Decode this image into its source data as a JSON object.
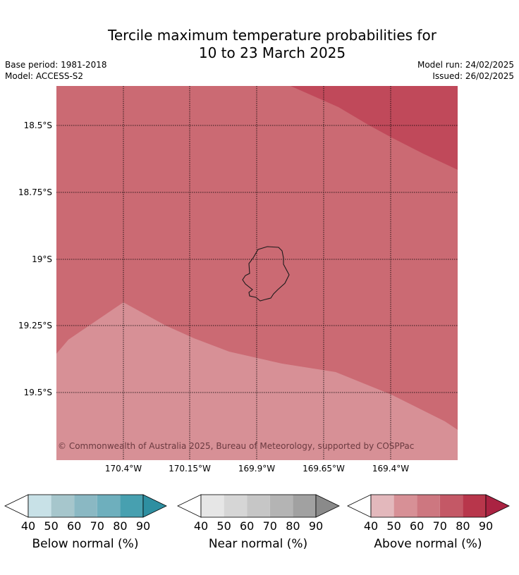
{
  "title": {
    "line1": "Tercile maximum temperature probabilities for",
    "line2": "10 to 23 March 2025"
  },
  "meta": {
    "base_period": "Base period: 1981-2018",
    "model": "Model: ACCESS-S2",
    "model_run": "Model run: 24/02/2025",
    "issued": "Issued: 26/02/2025"
  },
  "map": {
    "latitude_labels": [
      "18.5°S",
      "18.75°S",
      "19°S",
      "19.25°S",
      "19.5°S"
    ],
    "longitude_labels": [
      "170.4°W",
      "170.15°W",
      "169.9°W",
      "169.65°W",
      "169.4°W"
    ],
    "copyright": "© Commonwealth of Australia 2025, Bureau of Meteorology, supported by COSPPac",
    "colors": {
      "above_50_60": "#d79096",
      "above_60_70": "#cb6a73",
      "above_70_80": "#c0495a"
    }
  },
  "colorbars": [
    {
      "title": "Below normal (%)",
      "ticks": [
        "40",
        "50",
        "60",
        "70",
        "80",
        "90"
      ],
      "colors": [
        "#ffffff",
        "#c8e1e7",
        "#a6c6cc",
        "#8ab8c3",
        "#6eafbd",
        "#47a0b0",
        "#2e8fa1"
      ]
    },
    {
      "title": "Near normal (%)",
      "ticks": [
        "40",
        "50",
        "60",
        "70",
        "80",
        "90"
      ],
      "colors": [
        "#ffffff",
        "#e6e6e6",
        "#d6d6d6",
        "#c6c6c6",
        "#b4b4b4",
        "#a1a1a1",
        "#8a8a8a"
      ]
    },
    {
      "title": "Above normal (%)",
      "ticks": [
        "40",
        "50",
        "60",
        "70",
        "80",
        "90"
      ],
      "colors": [
        "#ffffff",
        "#e3b8bc",
        "#d79096",
        "#cd7780",
        "#c45866",
        "#b8364b",
        "#aa2342"
      ]
    }
  ]
}
